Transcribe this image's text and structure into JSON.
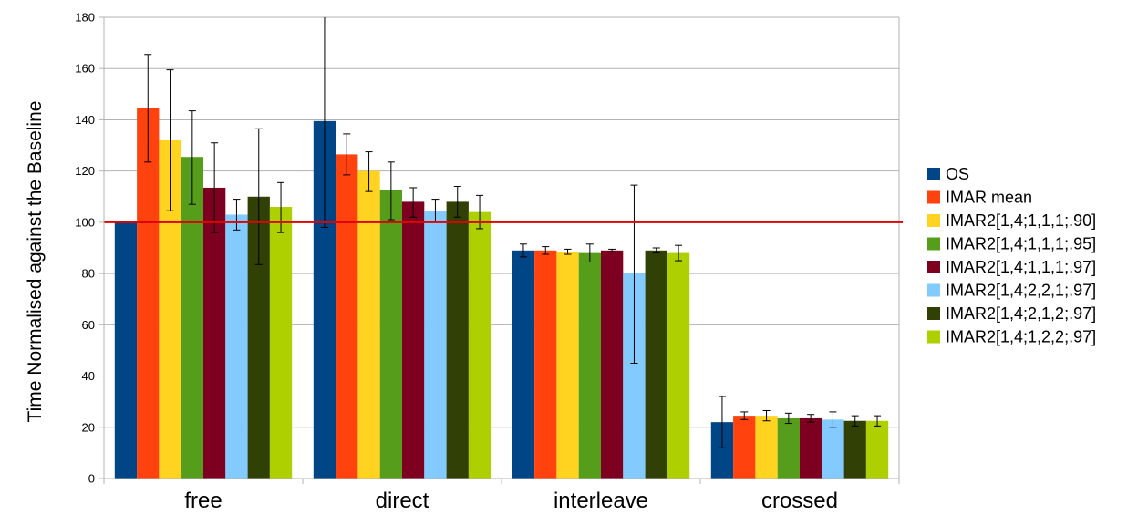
{
  "chart_data": {
    "type": "bar",
    "title": "",
    "xlabel": "",
    "ylabel": "Time Normalised against the Baseline",
    "ylim": [
      0,
      180
    ],
    "yticks": [
      0,
      20,
      40,
      60,
      80,
      100,
      120,
      140,
      160,
      180
    ],
    "grid": true,
    "legend_position": "right",
    "categories": [
      "free",
      "direct",
      "interleave",
      "crossed"
    ],
    "reference_line": {
      "value": 100,
      "color": "#e00000"
    },
    "series": [
      {
        "name": "OS",
        "color": "#004586",
        "values": [
          100,
          139.5,
          89,
          22
        ],
        "err_low": [
          100,
          98,
          86.5,
          12
        ],
        "err_high": [
          100.5,
          181,
          91.5,
          32
        ]
      },
      {
        "name": "IMAR mean",
        "color": "#ff420e",
        "values": [
          144.5,
          126.5,
          89,
          24.5
        ],
        "err_low": [
          123.5,
          118.5,
          87.5,
          23
        ],
        "err_high": [
          165.5,
          134.5,
          90.5,
          26
        ]
      },
      {
        "name": "IMAR2[1,4;1,1,1;.90]",
        "color": "#ffd320",
        "values": [
          132,
          120,
          88.5,
          24.5
        ],
        "err_low": [
          104.5,
          112,
          87.5,
          22.5
        ],
        "err_high": [
          159.5,
          127.5,
          89.5,
          26.5
        ]
      },
      {
        "name": "IMAR2[1,4;1,1,1;.95]",
        "color": "#579d1c",
        "values": [
          125.5,
          112.5,
          88,
          23.5
        ],
        "err_low": [
          107,
          101,
          84.5,
          21.5
        ],
        "err_high": [
          143.5,
          123.5,
          91.5,
          25.5
        ]
      },
      {
        "name": "IMAR2[1,4;1,1,1;.97]",
        "color": "#7e0021",
        "values": [
          113.5,
          108,
          89,
          23.5
        ],
        "err_low": [
          96,
          102,
          88.5,
          22
        ],
        "err_high": [
          131,
          113.5,
          89.5,
          25
        ]
      },
      {
        "name": "IMAR2[1,4;2,2,1;.97]",
        "color": "#83caff",
        "values": [
          103,
          104.5,
          80,
          23
        ],
        "err_low": [
          97,
          100,
          45,
          20
        ],
        "err_high": [
          109,
          109,
          114.5,
          26
        ]
      },
      {
        "name": "IMAR2[1,4;2,1,2;.97]",
        "color": "#314004",
        "values": [
          110,
          108,
          89,
          22.5
        ],
        "err_low": [
          83.5,
          102,
          88,
          20.5
        ],
        "err_high": [
          136.5,
          114,
          90,
          24.5
        ]
      },
      {
        "name": "IMAR2[1,4;1,2,2;.97]",
        "color": "#aecf00",
        "values": [
          106,
          104,
          88,
          22.5
        ],
        "err_low": [
          96,
          97.5,
          85,
          20.5
        ],
        "err_high": [
          115.5,
          110.5,
          91,
          24.5
        ]
      }
    ]
  }
}
